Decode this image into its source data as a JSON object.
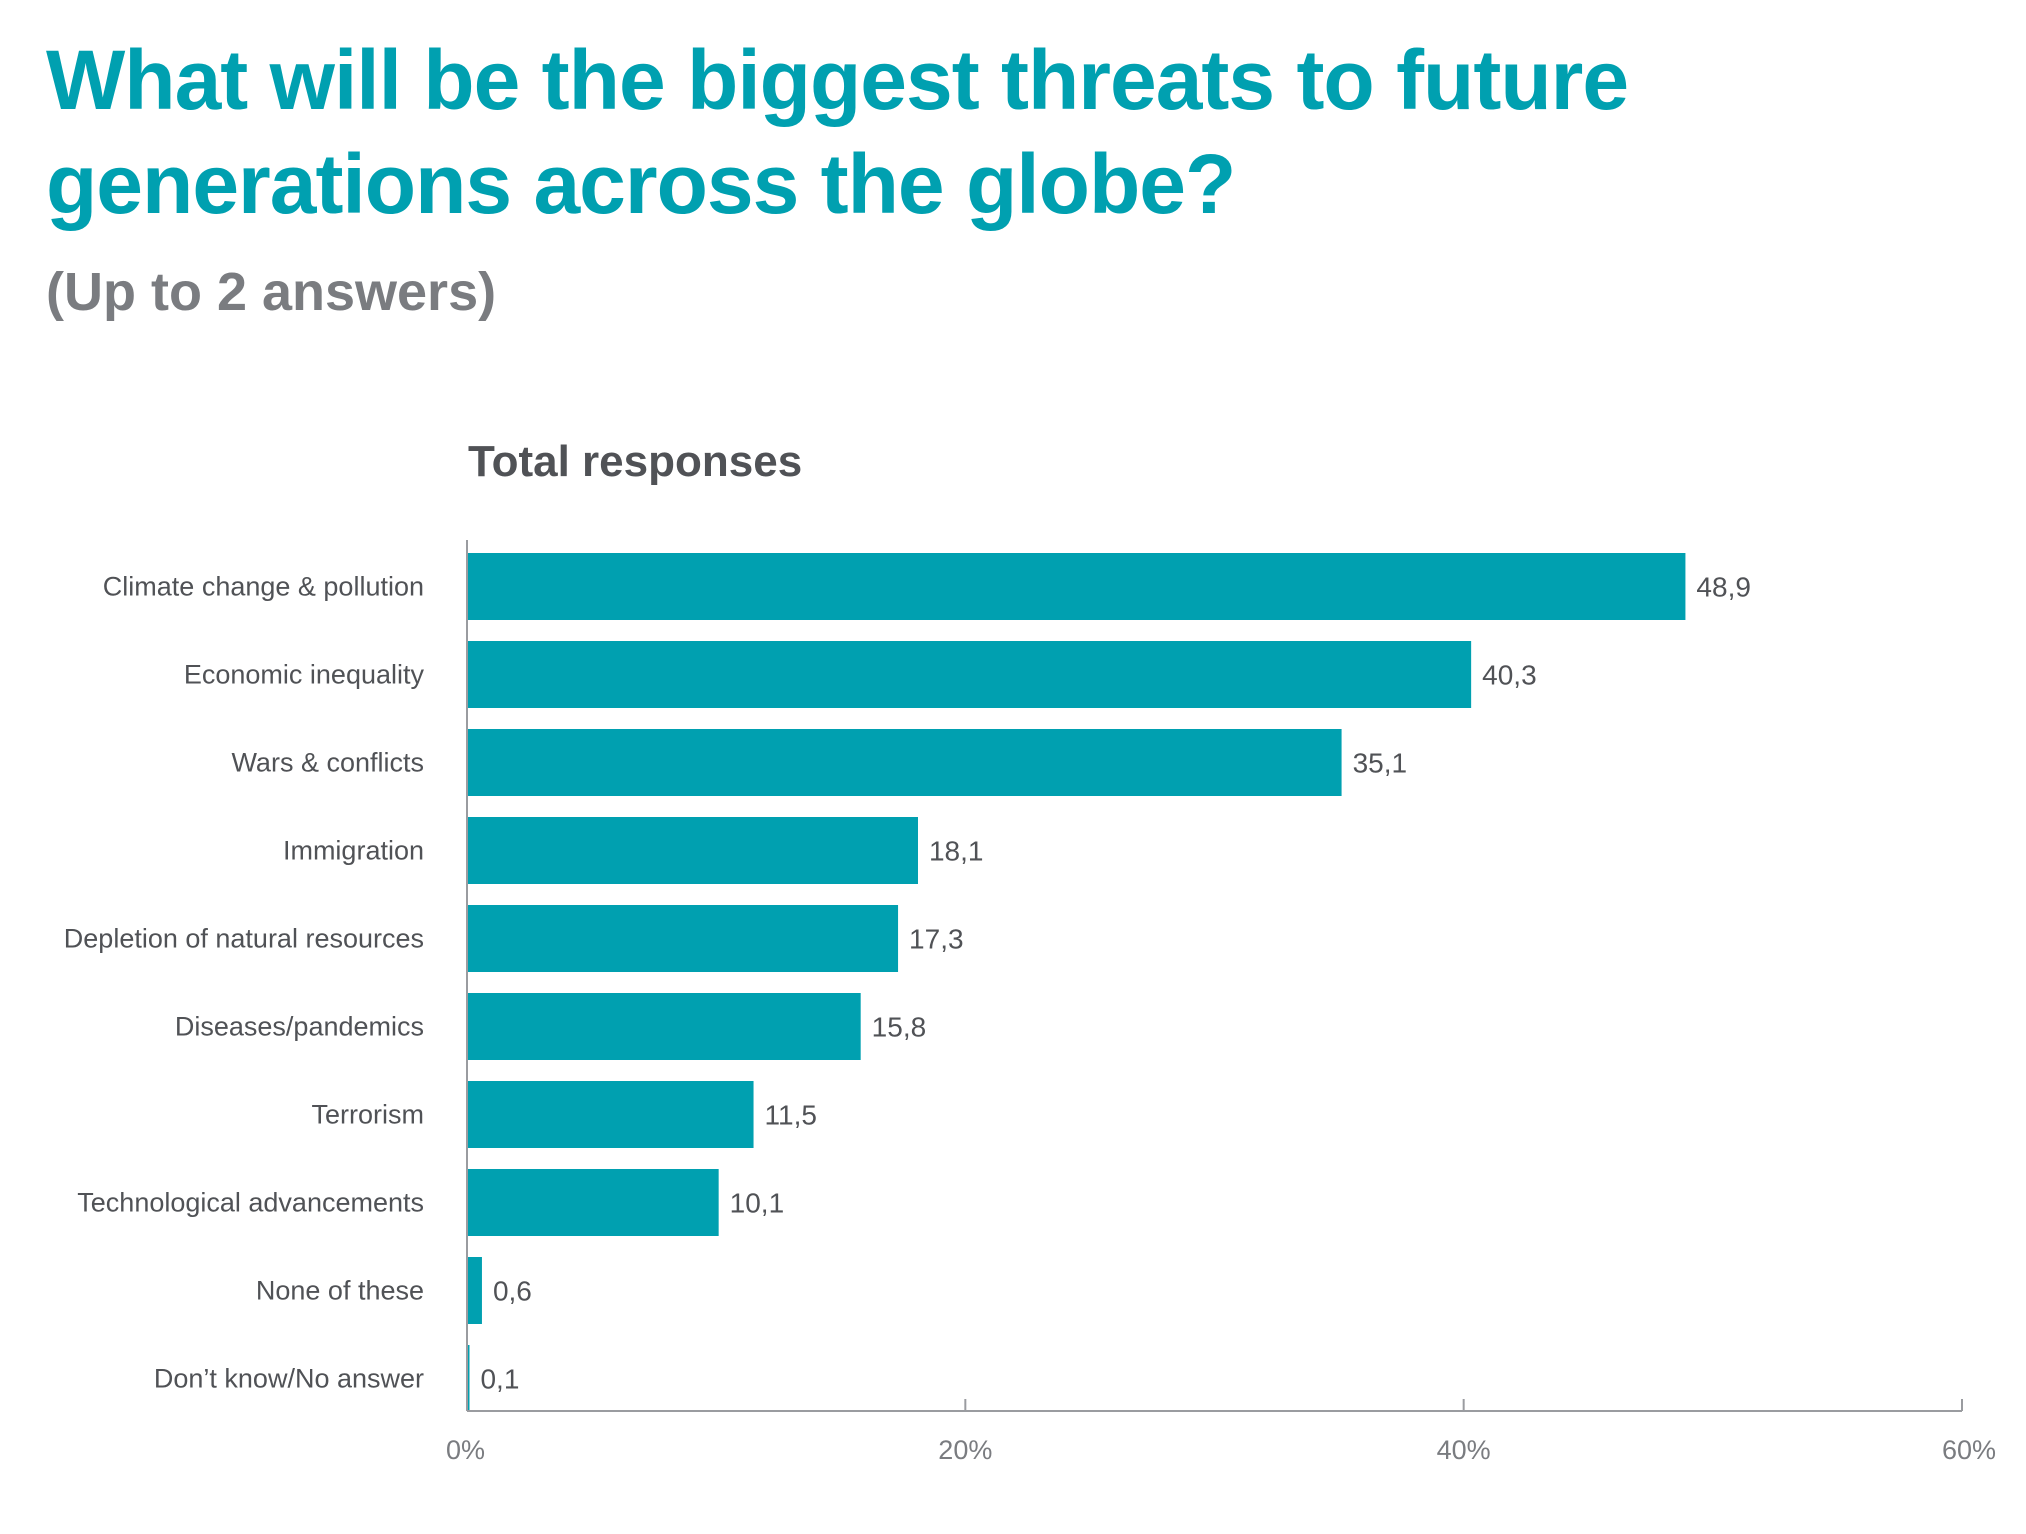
{
  "header": {
    "title": "What will be the biggest threats to future generations across the globe?",
    "subtitle": "(Up to 2 answers)"
  },
  "chart_data": {
    "type": "bar",
    "orientation": "horizontal",
    "title": "Total responses",
    "categories": [
      "Climate change & pollution",
      "Economic inequality",
      "Wars & conflicts",
      "Immigration",
      "Depletion of natural resources",
      "Diseases/pandemics",
      "Terrorism",
      "Technological advancements",
      "None of these",
      "Don’t know/No answer"
    ],
    "values": [
      48.9,
      40.3,
      35.1,
      18.1,
      17.3,
      15.8,
      11.5,
      10.1,
      0.6,
      0.1
    ],
    "value_labels": [
      "48,9",
      "40,3",
      "35,1",
      "18,1",
      "17,3",
      "15,8",
      "11,5",
      "10,1",
      "0,6",
      "0,1"
    ],
    "xlim": [
      0,
      60
    ],
    "xticks": [
      0,
      20,
      40,
      60
    ],
    "xtick_labels": [
      "0%",
      "20%",
      "40%",
      "60%"
    ],
    "grid": false,
    "colors": {
      "bar": "#00a0b0",
      "title": "#00a0b0",
      "subtitle": "#7a7c80",
      "axis": "#9a9ca0",
      "text": "#505256"
    }
  }
}
